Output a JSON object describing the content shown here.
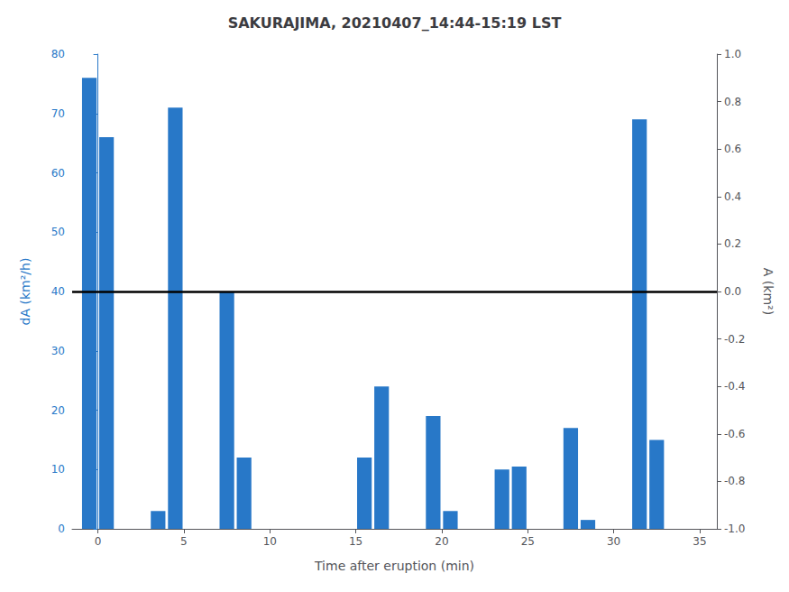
{
  "chart_data": {
    "type": "bar",
    "title": "SAKURAJIMA, 20210407_14:44-15:19 LST",
    "xlabel": "Time after eruption (min)",
    "ylabel": "dA (km²/h)",
    "y2label": "A (km²)",
    "series": [
      {
        "type": "bar",
        "color": "#2878c8",
        "x": [
          -0.5,
          0.5,
          3.5,
          4.5,
          7.5,
          8.5,
          15.5,
          16.5,
          19.5,
          20.5,
          23.5,
          24.5,
          27.5,
          28.5,
          31.5,
          32.5
        ],
        "values": [
          76,
          66,
          3,
          71,
          40,
          12,
          12,
          24,
          19,
          3,
          10,
          10.5,
          17,
          1.5,
          69,
          15
        ]
      },
      {
        "type": "hline",
        "color": "black",
        "values": [
          40
        ]
      }
    ],
    "xlim": [
      -1.5,
      36
    ],
    "xticks": [
      0,
      5,
      10,
      15,
      20,
      25,
      30,
      35
    ],
    "ylim": [
      0,
      80
    ],
    "yticks": [
      0,
      10,
      20,
      30,
      40,
      50,
      60,
      70,
      80
    ],
    "y2lim": [
      -1,
      1
    ],
    "y2ticks": [
      {
        "value": -1,
        "label": "-1.0"
      },
      -0.8,
      -0.6,
      -0.4,
      -0.2,
      {
        "value": 0,
        "label": "0.0"
      },
      0.2,
      0.4,
      0.6,
      0.8,
      {
        "value": 1,
        "label": "1.0"
      }
    ],
    "grid": false
  }
}
